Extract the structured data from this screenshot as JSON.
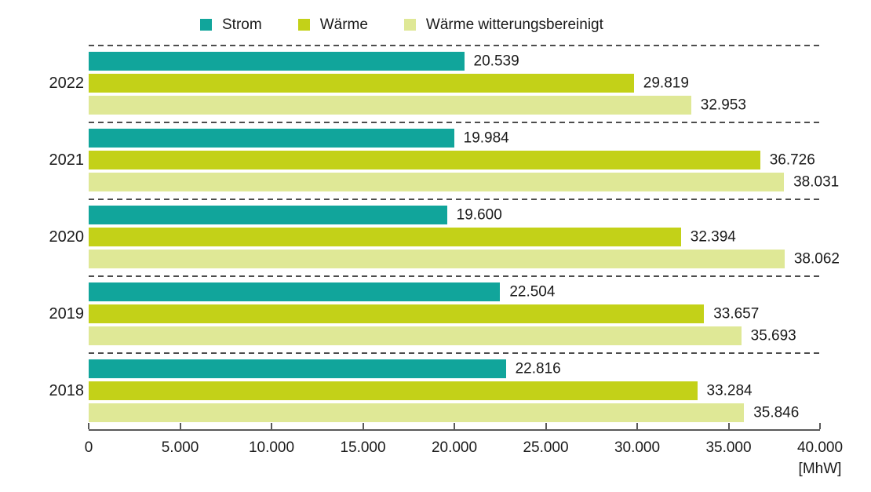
{
  "chart_data": {
    "type": "bar",
    "orientation": "horizontal",
    "title": "",
    "unit_label": "[MhW]",
    "categories": [
      "2022",
      "2021",
      "2020",
      "2019",
      "2018"
    ],
    "series": [
      {
        "name": "Strom",
        "color": "#11A59B",
        "values": [
          20539,
          19984,
          19600,
          22504,
          22816
        ],
        "value_labels": [
          "20.539",
          "19.984",
          "19.600",
          "22.504",
          "22.816"
        ]
      },
      {
        "name": "Wärme",
        "color": "#C3D118",
        "values": [
          29819,
          36726,
          32394,
          33657,
          33284
        ],
        "value_labels": [
          "29.819",
          "36.726",
          "32.394",
          "33.657",
          "33.284"
        ]
      },
      {
        "name": "Wärme witterungsbereinigt",
        "color": "#DFE896",
        "values": [
          32953,
          38031,
          38062,
          35693,
          35846
        ],
        "value_labels": [
          "32.953",
          "38.031",
          "38.062",
          "35.693",
          "35.846"
        ]
      }
    ],
    "xlim": [
      0,
      40000
    ],
    "x_ticks": [
      {
        "value": 0,
        "label": "0"
      },
      {
        "value": 5000,
        "label": "5.000"
      },
      {
        "value": 10000,
        "label": "10.000"
      },
      {
        "value": 15000,
        "label": "15.000"
      },
      {
        "value": 20000,
        "label": "20.000"
      },
      {
        "value": 25000,
        "label": "25.000"
      },
      {
        "value": 30000,
        "label": "30.000"
      },
      {
        "value": 35000,
        "label": "35.000"
      },
      {
        "value": 40000,
        "label": "40.000"
      }
    ],
    "legend_position": "top",
    "grid": "dashed horizontal separators above each category group",
    "separator_color": "#4d4d4d",
    "axis_color": "#595959"
  }
}
